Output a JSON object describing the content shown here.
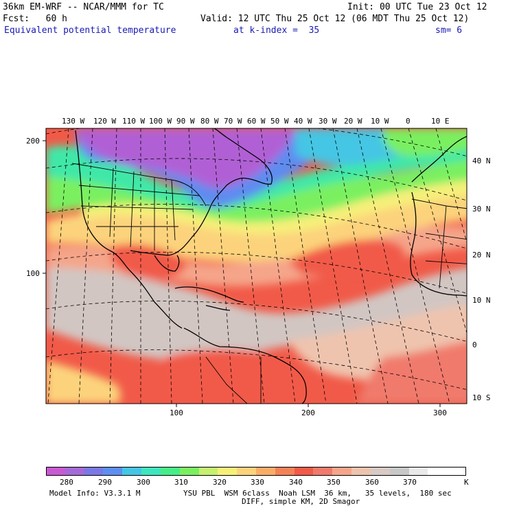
{
  "header": {
    "model_title": "36km EM-WRF -- NCAR/MMM for TC",
    "init": "Init: 00 UTC Tue 23 Oct 12",
    "fcst": "Fcst:   60 h",
    "valid": "Valid: 12 UTC Thu 25 Oct 12 (06 MDT Thu 25 Oct 12)",
    "field": "Equivalent potential temperature",
    "k_index": "at k-index =  35",
    "smoothing": "sm= 6"
  },
  "map": {
    "top_lon_labels": [
      "130 W",
      "120 W",
      "110 W",
      "100 W",
      "90 W",
      "80 W",
      "70 W",
      "60 W",
      "50 W",
      "40 W",
      "30 W",
      "20 W",
      "10 W",
      "0",
      "10 E"
    ],
    "right_lat_labels": [
      "40 N",
      "30 N",
      "20 N",
      "10 N",
      "0",
      "10 S"
    ],
    "left_grid_labels": [
      "200",
      "100"
    ],
    "bottom_grid_labels": [
      "100",
      "200",
      "300"
    ],
    "colors": {
      "c280": "#c060d0",
      "c290": "#9c6ee0",
      "c300": "#5f8cf0",
      "c310": "#40e8a8",
      "c320": "#c8f070",
      "c330": "#fcd37c",
      "c340": "#f15a48",
      "c350": "#f5a58a",
      "c360": "#d2c6c2",
      "c370": "#fbfbfb"
    }
  },
  "colorbar": {
    "swatches": [
      "#c85ad2",
      "#a46ad8",
      "#7a78e4",
      "#5d8ef0",
      "#45c6e4",
      "#3ee6c0",
      "#46ee88",
      "#7af060",
      "#c6f070",
      "#f6f07a",
      "#fcd37c",
      "#fbad68",
      "#f58256",
      "#f15a48",
      "#f07a6c",
      "#f5a58a",
      "#efc4ae",
      "#d8cac4",
      "#c8c8c8",
      "#eaeaea",
      "#ffffff",
      "#ffffff"
    ],
    "labels": [
      "280",
      "290",
      "300",
      "310",
      "320",
      "330",
      "340",
      "350",
      "360",
      "370"
    ],
    "unit": "K"
  },
  "footer": {
    "model_info": "Model Info: V3.3.1 M",
    "physics": "YSU PBL  WSM 6class  Noah LSM  36 km,   35 levels,  180 sec",
    "diff": "DIFF, simple KM, 2D Smagor"
  }
}
